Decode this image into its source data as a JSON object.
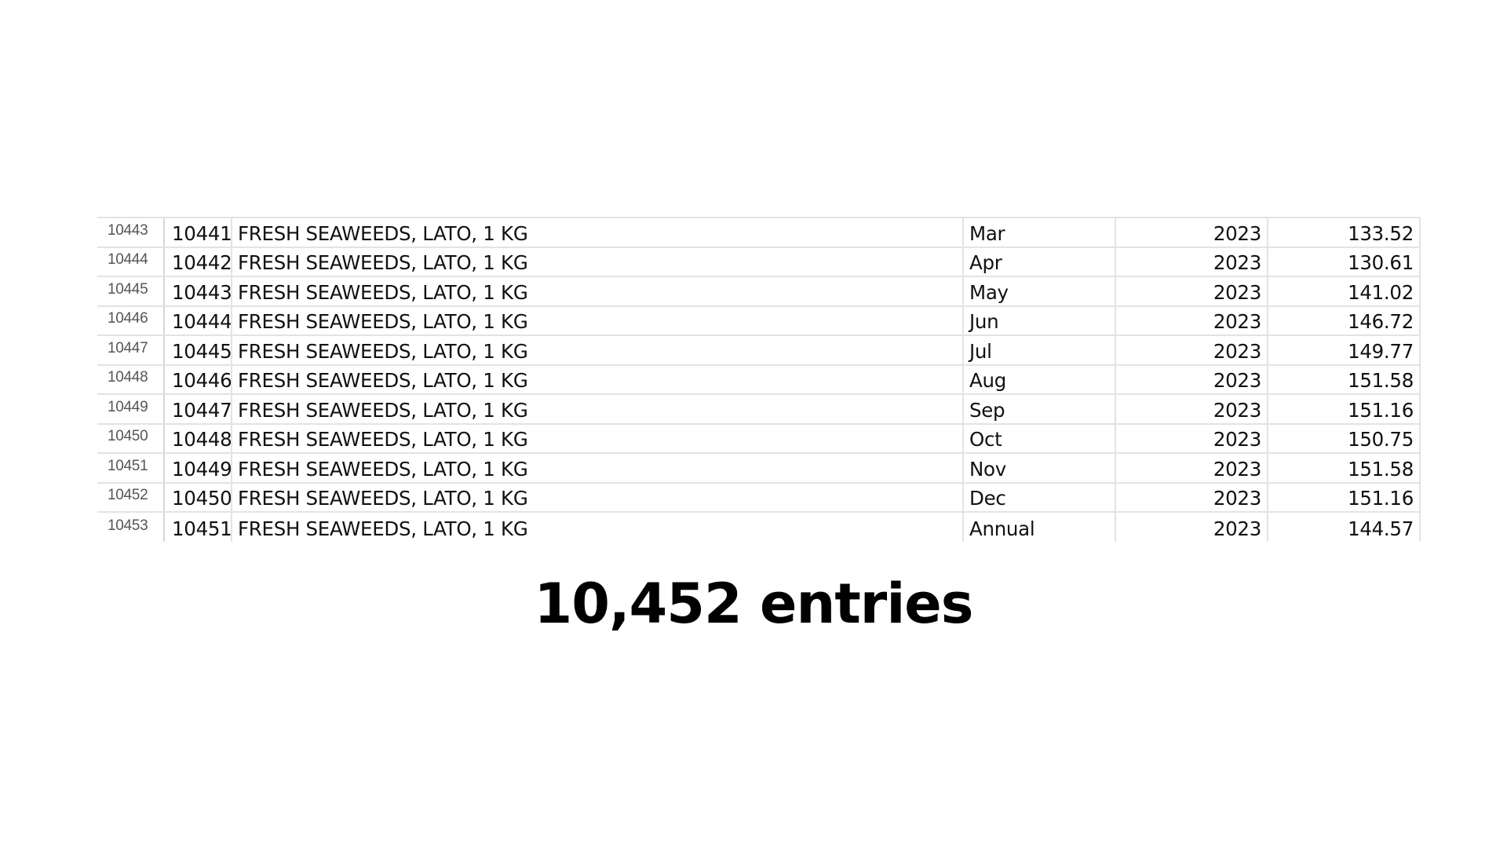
{
  "sheet": {
    "rows": [
      {
        "row_number": "10443",
        "id": "10441",
        "item": "FRESH SEAWEEDS, LATO, 1 KG",
        "month": "Mar",
        "year": "2023",
        "value": "133.52"
      },
      {
        "row_number": "10444",
        "id": "10442",
        "item": "FRESH SEAWEEDS, LATO, 1 KG",
        "month": "Apr",
        "year": "2023",
        "value": "130.61"
      },
      {
        "row_number": "10445",
        "id": "10443",
        "item": "FRESH SEAWEEDS, LATO, 1 KG",
        "month": "May",
        "year": "2023",
        "value": "141.02"
      },
      {
        "row_number": "10446",
        "id": "10444",
        "item": "FRESH SEAWEEDS, LATO, 1 KG",
        "month": "Jun",
        "year": "2023",
        "value": "146.72"
      },
      {
        "row_number": "10447",
        "id": "10445",
        "item": "FRESH SEAWEEDS, LATO, 1 KG",
        "month": "Jul",
        "year": "2023",
        "value": "149.77"
      },
      {
        "row_number": "10448",
        "id": "10446",
        "item": "FRESH SEAWEEDS, LATO, 1 KG",
        "month": "Aug",
        "year": "2023",
        "value": "151.58"
      },
      {
        "row_number": "10449",
        "id": "10447",
        "item": "FRESH SEAWEEDS, LATO, 1 KG",
        "month": "Sep",
        "year": "2023",
        "value": "151.16"
      },
      {
        "row_number": "10450",
        "id": "10448",
        "item": "FRESH SEAWEEDS, LATO, 1 KG",
        "month": "Oct",
        "year": "2023",
        "value": "150.75"
      },
      {
        "row_number": "10451",
        "id": "10449",
        "item": "FRESH SEAWEEDS, LATO, 1 KG",
        "month": "Nov",
        "year": "2023",
        "value": "151.58"
      },
      {
        "row_number": "10452",
        "id": "10450",
        "item": "FRESH SEAWEEDS, LATO, 1 KG",
        "month": "Dec",
        "year": "2023",
        "value": "151.16"
      },
      {
        "row_number": "10453",
        "id": "10451",
        "item": "FRESH SEAWEEDS, LATO, 1 KG",
        "month": "Annual",
        "year": "2023",
        "value": "144.57"
      }
    ]
  },
  "headline": "10,452 entries"
}
